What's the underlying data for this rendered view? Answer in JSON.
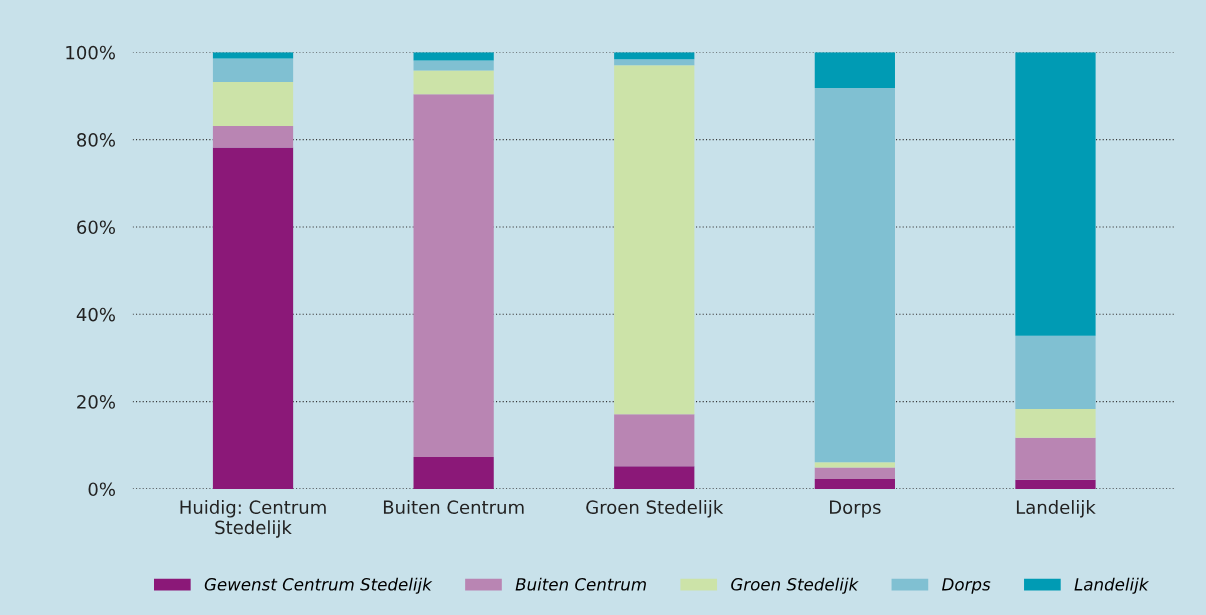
{
  "chart_data": {
    "type": "bar",
    "stacked": true,
    "categories": [
      "Huidig: Centrum\nStedelijk",
      "Buiten Centrum",
      "Groen Stedelijk",
      "Dorps",
      "Landelijk"
    ],
    "series": [
      {
        "name": "Gewenst Centrum Stedelijk",
        "color": "#8b1878",
        "values": [
          78.2,
          7.3,
          5.2,
          2.3,
          2.1
        ]
      },
      {
        "name": "Buiten Centrum",
        "color": "#b985b3",
        "values": [
          4.9,
          83.1,
          11.9,
          2.6,
          9.6
        ]
      },
      {
        "name": "Groen Stedelijk",
        "color": "#cce3a8",
        "values": [
          10.1,
          5.4,
          79.9,
          1.2,
          6.6
        ]
      },
      {
        "name": "Dorps",
        "color": "#80c0d2",
        "values": [
          5.4,
          2.3,
          1.4,
          85.7,
          16.8
        ]
      },
      {
        "name": "Landelijk",
        "color": "#009bb4",
        "values": [
          1.4,
          1.9,
          1.6,
          8.2,
          64.9
        ]
      }
    ],
    "ylim": [
      0,
      100
    ],
    "yticks": [
      {
        "value": 0,
        "label": "0%"
      },
      {
        "value": 20,
        "label": "20%"
      },
      {
        "value": 40,
        "label": "40%"
      },
      {
        "value": 60,
        "label": "60%"
      },
      {
        "value": 80,
        "label": "80%"
      },
      {
        "value": 100,
        "label": "100%"
      }
    ],
    "grid": "y",
    "legend": "bottom"
  }
}
